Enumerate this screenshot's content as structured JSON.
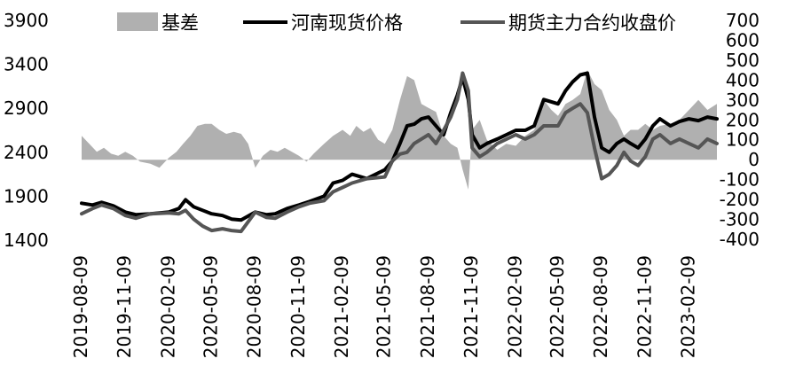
{
  "chart_data": {
    "type": "line",
    "legend": {
      "placement": "top",
      "items": [
        {
          "name": "基差",
          "kind": "area",
          "color": "#b0b0b0"
        },
        {
          "name": "河南现货价格",
          "kind": "line",
          "color": "#000000"
        },
        {
          "name": "期货主力合约收盘价",
          "kind": "line",
          "color": "#555555"
        }
      ]
    },
    "y_left": {
      "min": 1400,
      "max": 3900,
      "step": 500,
      "ticks": [
        "1400",
        "1900",
        "2400",
        "2900",
        "3400",
        "3900"
      ]
    },
    "y_right": {
      "min": -400,
      "max": 700,
      "step": 100,
      "ticks": [
        "-400",
        "-300",
        "-200",
        "-100",
        "0",
        "100",
        "200",
        "300",
        "400",
        "500",
        "600",
        "700"
      ]
    },
    "x_ticks": [
      "2019-08-09",
      "2019-11-09",
      "2020-02-09",
      "2020-05-09",
      "2020-08-09",
      "2020-11-09",
      "2021-02-09",
      "2021-05-09",
      "2021-08-09",
      "2021-11-09",
      "2022-02-09",
      "2022-05-09",
      "2022-08-09",
      "2022-11-09",
      "2023-02-09"
    ],
    "x_range": [
      "2019-08-09",
      "2023-04-09"
    ],
    "grid": false,
    "series": [
      {
        "name": "河南现货价格",
        "axis": "left",
        "points": [
          [
            "2019-08-09",
            1820
          ],
          [
            "2019-09-01",
            1800
          ],
          [
            "2019-09-20",
            1830
          ],
          [
            "2019-10-15",
            1790
          ],
          [
            "2019-11-09",
            1720
          ],
          [
            "2019-12-01",
            1690
          ],
          [
            "2020-01-01",
            1700
          ],
          [
            "2020-02-09",
            1720
          ],
          [
            "2020-03-01",
            1760
          ],
          [
            "2020-03-15",
            1860
          ],
          [
            "2020-04-01",
            1780
          ],
          [
            "2020-04-20",
            1740
          ],
          [
            "2020-05-09",
            1700
          ],
          [
            "2020-06-01",
            1680
          ],
          [
            "2020-06-20",
            1640
          ],
          [
            "2020-07-10",
            1630
          ],
          [
            "2020-08-09",
            1720
          ],
          [
            "2020-09-01",
            1690
          ],
          [
            "2020-09-20",
            1700
          ],
          [
            "2020-10-15",
            1760
          ],
          [
            "2020-11-09",
            1800
          ],
          [
            "2020-12-01",
            1840
          ],
          [
            "2021-01-01",
            1900
          ],
          [
            "2021-01-20",
            2050
          ],
          [
            "2021-02-09",
            2080
          ],
          [
            "2021-03-01",
            2150
          ],
          [
            "2021-04-01",
            2100
          ],
          [
            "2021-05-09",
            2200
          ],
          [
            "2021-05-25",
            2300
          ],
          [
            "2021-06-10",
            2500
          ],
          [
            "2021-06-25",
            2700
          ],
          [
            "2021-07-10",
            2720
          ],
          [
            "2021-07-25",
            2780
          ],
          [
            "2021-08-09",
            2800
          ],
          [
            "2021-08-25",
            2700
          ],
          [
            "2021-09-10",
            2600
          ],
          [
            "2021-09-25",
            2850
          ],
          [
            "2021-10-09",
            3050
          ],
          [
            "2021-10-20",
            3250
          ],
          [
            "2021-11-01",
            3000
          ],
          [
            "2021-11-09",
            2600
          ],
          [
            "2021-11-25",
            2450
          ],
          [
            "2021-12-10",
            2500
          ],
          [
            "2022-01-01",
            2550
          ],
          [
            "2022-02-09",
            2650
          ],
          [
            "2022-03-01",
            2650
          ],
          [
            "2022-03-20",
            2700
          ],
          [
            "2022-04-09",
            3000
          ],
          [
            "2022-05-09",
            2950
          ],
          [
            "2022-05-25",
            3100
          ],
          [
            "2022-06-09",
            3200
          ],
          [
            "2022-06-25",
            3280
          ],
          [
            "2022-07-10",
            3300
          ],
          [
            "2022-07-25",
            2800
          ],
          [
            "2022-08-09",
            2450
          ],
          [
            "2022-08-25",
            2400
          ],
          [
            "2022-09-10",
            2500
          ],
          [
            "2022-09-25",
            2550
          ],
          [
            "2022-10-09",
            2500
          ],
          [
            "2022-10-25",
            2450
          ],
          [
            "2022-11-09",
            2550
          ],
          [
            "2022-11-25",
            2700
          ],
          [
            "2022-12-10",
            2780
          ],
          [
            "2023-01-01",
            2700
          ],
          [
            "2023-01-20",
            2750
          ],
          [
            "2023-02-09",
            2780
          ],
          [
            "2023-03-01",
            2760
          ],
          [
            "2023-03-20",
            2800
          ],
          [
            "2023-04-09",
            2780
          ]
        ]
      },
      {
        "name": "期货主力合约收盘价",
        "axis": "left",
        "points": [
          [
            "2019-08-09",
            1700
          ],
          [
            "2019-09-01",
            1760
          ],
          [
            "2019-09-20",
            1800
          ],
          [
            "2019-10-15",
            1760
          ],
          [
            "2019-11-09",
            1680
          ],
          [
            "2019-12-01",
            1650
          ],
          [
            "2020-01-01",
            1700
          ],
          [
            "2020-02-09",
            1710
          ],
          [
            "2020-03-01",
            1700
          ],
          [
            "2020-03-15",
            1740
          ],
          [
            "2020-04-01",
            1640
          ],
          [
            "2020-04-20",
            1560
          ],
          [
            "2020-05-09",
            1510
          ],
          [
            "2020-06-01",
            1530
          ],
          [
            "2020-06-20",
            1510
          ],
          [
            "2020-07-10",
            1500
          ],
          [
            "2020-08-09",
            1720
          ],
          [
            "2020-09-01",
            1660
          ],
          [
            "2020-09-20",
            1650
          ],
          [
            "2020-10-15",
            1720
          ],
          [
            "2020-11-09",
            1780
          ],
          [
            "2020-12-01",
            1820
          ],
          [
            "2021-01-01",
            1850
          ],
          [
            "2021-01-20",
            1950
          ],
          [
            "2021-02-09",
            2000
          ],
          [
            "2021-03-01",
            2050
          ],
          [
            "2021-04-01",
            2100
          ],
          [
            "2021-05-09",
            2120
          ],
          [
            "2021-05-25",
            2300
          ],
          [
            "2021-06-10",
            2380
          ],
          [
            "2021-06-25",
            2400
          ],
          [
            "2021-07-10",
            2500
          ],
          [
            "2021-07-25",
            2550
          ],
          [
            "2021-08-09",
            2600
          ],
          [
            "2021-08-25",
            2500
          ],
          [
            "2021-09-10",
            2650
          ],
          [
            "2021-09-25",
            2800
          ],
          [
            "2021-10-09",
            3000
          ],
          [
            "2021-10-20",
            3300
          ],
          [
            "2021-11-01",
            3100
          ],
          [
            "2021-11-09",
            2450
          ],
          [
            "2021-11-25",
            2350
          ],
          [
            "2021-12-10",
            2400
          ],
          [
            "2022-01-01",
            2500
          ],
          [
            "2022-02-09",
            2600
          ],
          [
            "2022-03-01",
            2550
          ],
          [
            "2022-03-20",
            2600
          ],
          [
            "2022-04-09",
            2700
          ],
          [
            "2022-05-09",
            2700
          ],
          [
            "2022-05-25",
            2850
          ],
          [
            "2022-06-09",
            2900
          ],
          [
            "2022-06-25",
            2950
          ],
          [
            "2022-07-10",
            2850
          ],
          [
            "2022-07-25",
            2450
          ],
          [
            "2022-08-09",
            2100
          ],
          [
            "2022-08-25",
            2150
          ],
          [
            "2022-09-10",
            2250
          ],
          [
            "2022-09-25",
            2400
          ],
          [
            "2022-10-09",
            2300
          ],
          [
            "2022-10-25",
            2250
          ],
          [
            "2022-11-09",
            2350
          ],
          [
            "2022-11-25",
            2550
          ],
          [
            "2022-12-10",
            2600
          ],
          [
            "2023-01-01",
            2500
          ],
          [
            "2023-01-20",
            2550
          ],
          [
            "2023-02-09",
            2500
          ],
          [
            "2023-03-01",
            2450
          ],
          [
            "2023-03-20",
            2550
          ],
          [
            "2023-04-09",
            2500
          ]
        ]
      },
      {
        "name": "基差",
        "axis": "right",
        "type": "area",
        "points": [
          [
            "2019-08-09",
            120
          ],
          [
            "2019-08-25",
            80
          ],
          [
            "2019-09-10",
            40
          ],
          [
            "2019-09-25",
            60
          ],
          [
            "2019-10-10",
            30
          ],
          [
            "2019-10-25",
            20
          ],
          [
            "2019-11-09",
            40
          ],
          [
            "2019-11-25",
            20
          ],
          [
            "2019-12-10",
            -10
          ],
          [
            "2020-01-01",
            -20
          ],
          [
            "2020-01-20",
            -40
          ],
          [
            "2020-02-09",
            10
          ],
          [
            "2020-02-25",
            40
          ],
          [
            "2020-03-10",
            80
          ],
          [
            "2020-03-25",
            120
          ],
          [
            "2020-04-09",
            170
          ],
          [
            "2020-04-25",
            180
          ],
          [
            "2020-05-09",
            180
          ],
          [
            "2020-05-25",
            150
          ],
          [
            "2020-06-09",
            130
          ],
          [
            "2020-06-25",
            140
          ],
          [
            "2020-07-10",
            130
          ],
          [
            "2020-07-25",
            80
          ],
          [
            "2020-08-09",
            -40
          ],
          [
            "2020-08-25",
            20
          ],
          [
            "2020-09-10",
            50
          ],
          [
            "2020-09-25",
            40
          ],
          [
            "2020-10-10",
            60
          ],
          [
            "2020-10-25",
            40
          ],
          [
            "2020-11-09",
            20
          ],
          [
            "2020-11-25",
            -10
          ],
          [
            "2020-12-10",
            30
          ],
          [
            "2021-01-01",
            80
          ],
          [
            "2021-01-20",
            120
          ],
          [
            "2021-02-09",
            150
          ],
          [
            "2021-02-25",
            120
          ],
          [
            "2021-03-10",
            170
          ],
          [
            "2021-03-25",
            140
          ],
          [
            "2021-04-09",
            160
          ],
          [
            "2021-04-25",
            100
          ],
          [
            "2021-05-09",
            80
          ],
          [
            "2021-05-25",
            150
          ],
          [
            "2021-06-10",
            300
          ],
          [
            "2021-06-25",
            420
          ],
          [
            "2021-07-10",
            400
          ],
          [
            "2021-07-25",
            280
          ],
          [
            "2021-08-09",
            260
          ],
          [
            "2021-08-25",
            240
          ],
          [
            "2021-09-10",
            120
          ],
          [
            "2021-09-25",
            80
          ],
          [
            "2021-10-09",
            60
          ],
          [
            "2021-10-20",
            -50
          ],
          [
            "2021-11-01",
            -150
          ],
          [
            "2021-11-09",
            150
          ],
          [
            "2021-11-25",
            200
          ],
          [
            "2021-12-10",
            100
          ],
          [
            "2022-01-01",
            50
          ],
          [
            "2022-01-20",
            80
          ],
          [
            "2022-02-09",
            70
          ],
          [
            "2022-03-01",
            120
          ],
          [
            "2022-03-20",
            150
          ],
          [
            "2022-04-09",
            300
          ],
          [
            "2022-04-25",
            250
          ],
          [
            "2022-05-09",
            220
          ],
          [
            "2022-05-25",
            280
          ],
          [
            "2022-06-09",
            300
          ],
          [
            "2022-06-25",
            330
          ],
          [
            "2022-07-10",
            450
          ],
          [
            "2022-07-25",
            380
          ],
          [
            "2022-08-09",
            350
          ],
          [
            "2022-08-25",
            250
          ],
          [
            "2022-09-10",
            200
          ],
          [
            "2022-09-25",
            120
          ],
          [
            "2022-10-09",
            150
          ],
          [
            "2022-10-25",
            150
          ],
          [
            "2022-11-09",
            180
          ],
          [
            "2022-11-25",
            150
          ],
          [
            "2022-12-10",
            170
          ],
          [
            "2023-01-01",
            180
          ],
          [
            "2023-01-20",
            200
          ],
          [
            "2023-02-09",
            250
          ],
          [
            "2023-03-01",
            300
          ],
          [
            "2023-03-20",
            250
          ],
          [
            "2023-04-09",
            280
          ]
        ]
      }
    ]
  }
}
